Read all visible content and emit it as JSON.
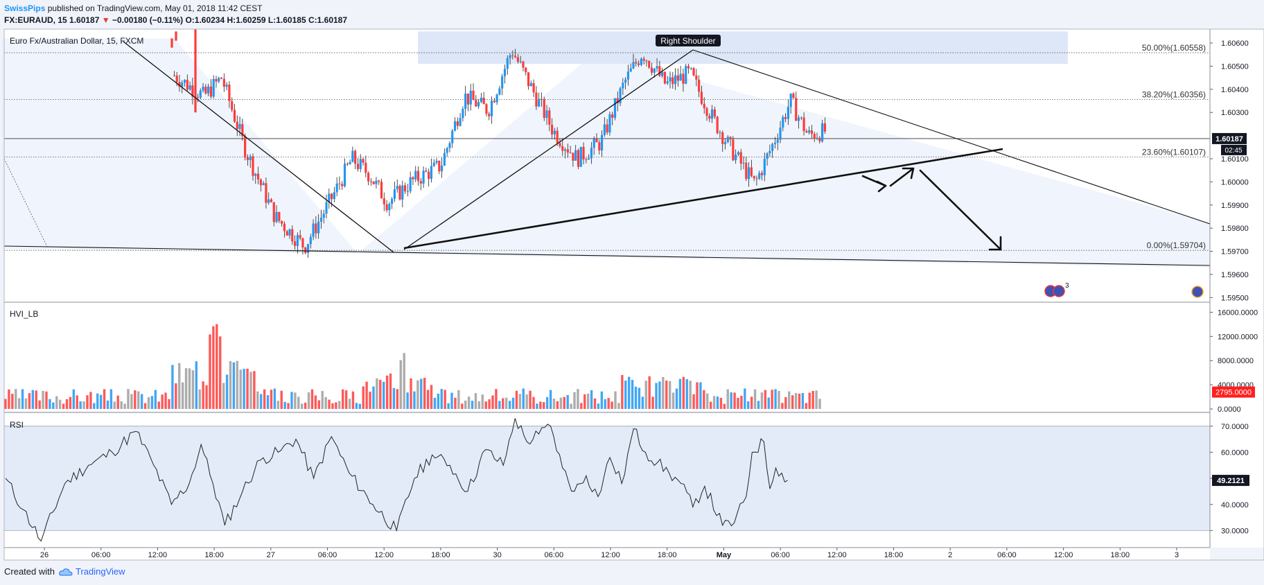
{
  "header": {
    "publisher": "SwissPips",
    "published_text": "published on TradingView.com, May 01, 2018 11:42 CEST",
    "symbol_line": "FX:EURAUD, 15",
    "last_price": "1.60187",
    "change_arrow": "▼",
    "change": "−0.00180 (−0.11%)",
    "o_label": "O:",
    "o_value": "1.60234",
    "h_label": "H:",
    "h_value": "1.60259",
    "l_label": "L:",
    "l_value": "1.60185",
    "c_label": "C:",
    "c_value": "1.60187"
  },
  "footer": {
    "created_with": "Created with",
    "brand": "TradingView"
  },
  "colors": {
    "up": "#2196f3",
    "down": "#ff3b3b",
    "neutral": "#9e9e9e",
    "band": "#e3ebf9",
    "zone": "#dde7f8",
    "grid": "#cfd4dc"
  },
  "chart_data": [
    {
      "type": "candlestick",
      "title": "Euro Fx/Australian Dollar, 15, FXCM",
      "annotation": "Right Shoulder",
      "y_ticks": [
        "1.60600",
        "1.60500",
        "1.60400",
        "1.60300",
        "1.60100",
        "1.60000",
        "1.59900",
        "1.59800",
        "1.59700",
        "1.59600",
        "1.59500"
      ],
      "ylim": [
        1.5948,
        1.6066
      ],
      "last_price_label": "1.60187",
      "countdown_label": "02:45",
      "fib_levels": [
        {
          "label": "50.00%(1.60558)",
          "value": 1.60558
        },
        {
          "label": "38.20%(1.60356)",
          "value": 1.60356
        },
        {
          "label": "23.60%(1.60107)",
          "value": 1.60107
        },
        {
          "label": "0.00%(1.59704)",
          "value": 1.59704
        }
      ],
      "x_labels": [
        "26",
        "06:00",
        "12:00",
        "18:00",
        "27",
        "06:00",
        "12:00",
        "18:00",
        "30",
        "06:00",
        "12:00",
        "18:00",
        "May",
        "06:00",
        "12:00",
        "18:00",
        "2",
        "06:00",
        "12:00",
        "18:00",
        "3"
      ],
      "close_path": [
        [
          0,
          1.6062
        ],
        [
          6,
          1.6035
        ],
        [
          10,
          1.6029
        ],
        [
          15,
          1.6024
        ],
        [
          20,
          1.6038
        ],
        [
          25,
          1.6028
        ],
        [
          28,
          1.6046
        ],
        [
          33,
          1.6037
        ],
        [
          36,
          1.6045
        ],
        [
          40,
          1.6014
        ],
        [
          45,
          1.5985
        ],
        [
          50,
          1.5972
        ],
        [
          55,
          1.5995
        ],
        [
          58,
          1.601
        ],
        [
          61,
          1.6003
        ],
        [
          64,
          1.5991
        ],
        [
          68,
          1.6
        ],
        [
          73,
          1.6007
        ],
        [
          77,
          1.6037
        ],
        [
          81,
          1.6031
        ],
        [
          85,
          1.6057
        ],
        [
          88,
          1.6042
        ],
        [
          92,
          1.6022
        ],
        [
          96,
          1.601
        ],
        [
          100,
          1.6017
        ],
        [
          104,
          1.6043
        ],
        [
          107,
          1.6056
        ],
        [
          111,
          1.6042
        ],
        [
          115,
          1.6047
        ],
        [
          119,
          1.6027
        ],
        [
          122,
          1.6014
        ],
        [
          126,
          1.5999
        ],
        [
          129,
          1.6016
        ],
        [
          132,
          1.6035
        ],
        [
          135,
          1.602
        ],
        [
          138,
          1.6022
        ]
      ]
    },
    {
      "type": "bar",
      "title": "HVI_LB",
      "y_ticks": [
        "16000.0000",
        "12000.0000",
        "8000.0000",
        "4000.0000",
        "0.0000"
      ],
      "ylim": [
        0,
        17200
      ],
      "last_value_label": "2795.0000",
      "spikes": [
        [
          35,
          16000
        ],
        [
          36,
          15500
        ],
        [
          38,
          9500
        ],
        [
          39,
          10000
        ],
        [
          40,
          8500
        ],
        [
          41,
          7000
        ],
        [
          67,
          10000
        ],
        [
          105,
          5500
        ],
        [
          110,
          5000
        ],
        [
          111,
          5300
        ],
        [
          112,
          4800
        ],
        [
          115,
          6500
        ],
        [
          117,
          4800
        ],
        [
          126,
          2500
        ]
      ]
    },
    {
      "type": "line",
      "title": "RSI",
      "y_ticks": [
        "70.0000",
        "60.0000",
        "50.0000",
        "40.0000",
        "30.0000"
      ],
      "ylim": [
        24,
        75
      ],
      "band": [
        30,
        70
      ],
      "last_value_label": "49.2121",
      "points": [
        [
          0,
          50
        ],
        [
          3,
          38
        ],
        [
          6,
          26
        ],
        [
          10,
          48
        ],
        [
          14,
          55
        ],
        [
          18,
          60
        ],
        [
          22,
          68
        ],
        [
          25,
          55
        ],
        [
          28,
          40
        ],
        [
          31,
          48
        ],
        [
          33,
          63
        ],
        [
          35,
          48
        ],
        [
          37,
          32
        ],
        [
          40,
          45
        ],
        [
          43,
          57
        ],
        [
          46,
          60
        ],
        [
          49,
          65
        ],
        [
          52,
          50
        ],
        [
          55,
          66
        ],
        [
          58,
          52
        ],
        [
          62,
          40
        ],
        [
          66,
          30
        ],
        [
          69,
          50
        ],
        [
          72,
          59
        ],
        [
          75,
          55
        ],
        [
          78,
          45
        ],
        [
          81,
          61
        ],
        [
          84,
          55
        ],
        [
          86,
          73
        ],
        [
          88,
          64
        ],
        [
          90,
          67
        ],
        [
          92,
          70
        ],
        [
          94,
          54
        ],
        [
          96,
          45
        ],
        [
          98,
          51
        ],
        [
          100,
          43
        ],
        [
          102,
          58
        ],
        [
          104,
          48
        ],
        [
          106,
          69
        ],
        [
          108,
          60
        ],
        [
          110,
          56
        ],
        [
          112,
          52
        ],
        [
          114,
          48
        ],
        [
          116,
          39
        ],
        [
          118,
          47
        ],
        [
          121,
          32
        ],
        [
          123,
          33
        ],
        [
          125,
          43
        ],
        [
          126,
          60
        ],
        [
          128,
          64
        ],
        [
          129,
          46
        ],
        [
          130,
          54
        ],
        [
          131,
          52
        ],
        [
          132,
          49.2
        ]
      ]
    }
  ]
}
